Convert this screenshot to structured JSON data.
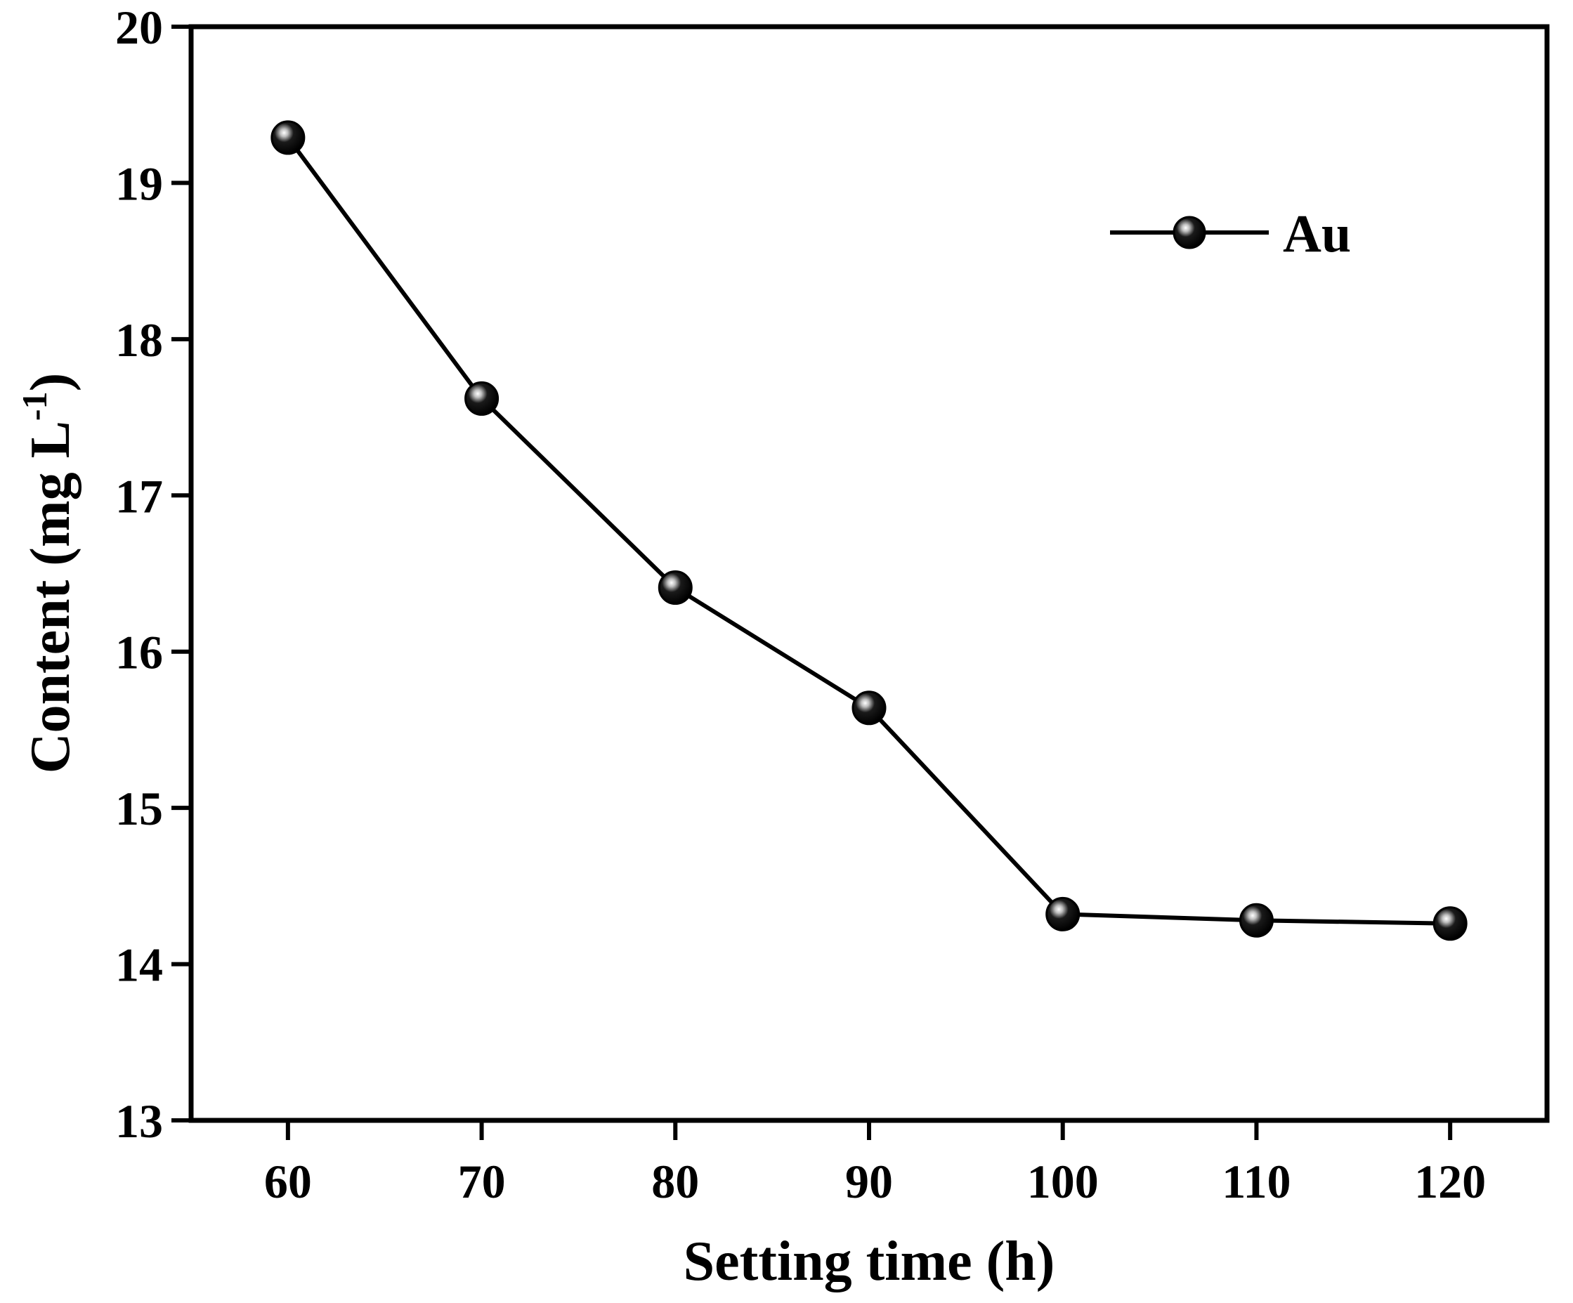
{
  "chart_data": {
    "type": "line",
    "x": [
      60,
      70,
      80,
      90,
      100,
      110,
      120
    ],
    "series": [
      {
        "name": "Au",
        "values": [
          19.29,
          17.62,
          16.41,
          15.64,
          14.32,
          14.28,
          14.26
        ]
      }
    ],
    "xlabel": "Setting time (h)",
    "ylabel": "Content (mg L",
    "ylabel_superscript": "-1",
    "ylabel_suffix": ")",
    "xlim": [
      55,
      125
    ],
    "ylim": [
      13,
      20
    ],
    "xticks": [
      "60",
      "70",
      "80",
      "90",
      "100",
      "110",
      "120"
    ],
    "yticks": [
      "13",
      "14",
      "15",
      "16",
      "17",
      "18",
      "19",
      "20"
    ],
    "grid": false,
    "legend_position": "top-right",
    "colors": {
      "line": "#000000",
      "marker": "#000000",
      "highlight": "#ffffff"
    }
  }
}
